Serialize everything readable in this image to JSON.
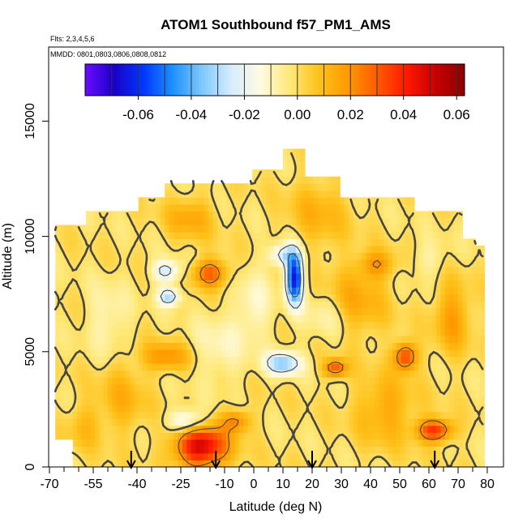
{
  "chart_data": {
    "type": "heatmap",
    "title": "ATOM1 Southbound f57_PM1_AMS",
    "subtitle_flights": "Flts: 2,3,4,5,6",
    "subtitle_dates": "MMDD: 0801,0803,0806,0808,0812",
    "xlabel": "Latitude (deg N)",
    "ylabel": "Altitude (m)",
    "xlim": [
      -70,
      82
    ],
    "ylim": [
      0,
      18000
    ],
    "x_ticks": [
      -70,
      -55,
      -40,
      -25,
      -10,
      0,
      10,
      20,
      30,
      40,
      50,
      60,
      70,
      80
    ],
    "x_tick_labels": [
      "-70",
      "-55",
      "-40",
      "-25",
      "-10",
      "0",
      "10",
      "20",
      "30",
      "40",
      "50",
      "60",
      "70",
      "80"
    ],
    "y_ticks": [
      0,
      5000,
      10000,
      15000
    ],
    "y_tick_labels": [
      "0",
      "5000",
      "10000",
      "15000"
    ],
    "colorbar": {
      "range": [
        -0.08,
        0.063
      ],
      "ticks": [
        -0.06,
        -0.04,
        -0.02,
        0.0,
        0.02,
        0.04,
        0.06
      ],
      "tick_labels": [
        "-0.06",
        "-0.04",
        "-0.02",
        "0.00",
        "0.02",
        "0.04",
        "0.06"
      ],
      "colors": [
        "#6a0dff",
        "#1a00c8",
        "#0038ff",
        "#1e90ff",
        "#7ec8ff",
        "#d6ecff",
        "#fffbe0",
        "#ffe97a",
        "#ffc21a",
        "#ff9a00",
        "#ff5a00",
        "#ff1a00",
        "#c80000",
        "#8a0000"
      ]
    },
    "arrow_latitudes": [
      -42,
      -13,
      20,
      62
    ],
    "grid": false,
    "legend": "colorbar top"
  }
}
